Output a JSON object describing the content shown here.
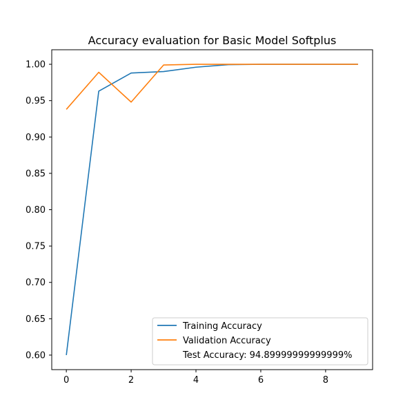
{
  "chart_data": {
    "type": "line",
    "title": "Accuracy evaluation for Basic Model Softplus",
    "xlabel": "",
    "ylabel": "",
    "xlim": [
      -0.45,
      9.45
    ],
    "ylim": [
      0.58,
      1.02
    ],
    "x_ticks": [
      0,
      2,
      4,
      6,
      8
    ],
    "x_tick_labels": [
      "0",
      "2",
      "4",
      "6",
      "8"
    ],
    "y_ticks": [
      0.6,
      0.65,
      0.7,
      0.75,
      0.8,
      0.85,
      0.9,
      0.95,
      1.0
    ],
    "y_tick_labels": [
      "0.60",
      "0.65",
      "0.70",
      "0.75",
      "0.80",
      "0.85",
      "0.90",
      "0.95",
      "1.00"
    ],
    "grid": false,
    "legend_position": "lower-right",
    "x": [
      0,
      1,
      2,
      3,
      4,
      5,
      6,
      7,
      8,
      9
    ],
    "series": [
      {
        "name": "Training Accuracy",
        "color": "#1f77b4",
        "values": [
          0.6,
          0.963,
          0.988,
          0.99,
          0.996,
          0.9995,
          1.0,
          1.0,
          1.0,
          1.0
        ]
      },
      {
        "name": "Validation Accuracy",
        "color": "#ff7f0e",
        "values": [
          0.938,
          0.989,
          0.948,
          0.999,
          1.0,
          1.0,
          1.0,
          1.0,
          1.0,
          1.0
        ]
      }
    ],
    "legend_note": "Test Accuracy: 94.89999999999999%"
  }
}
